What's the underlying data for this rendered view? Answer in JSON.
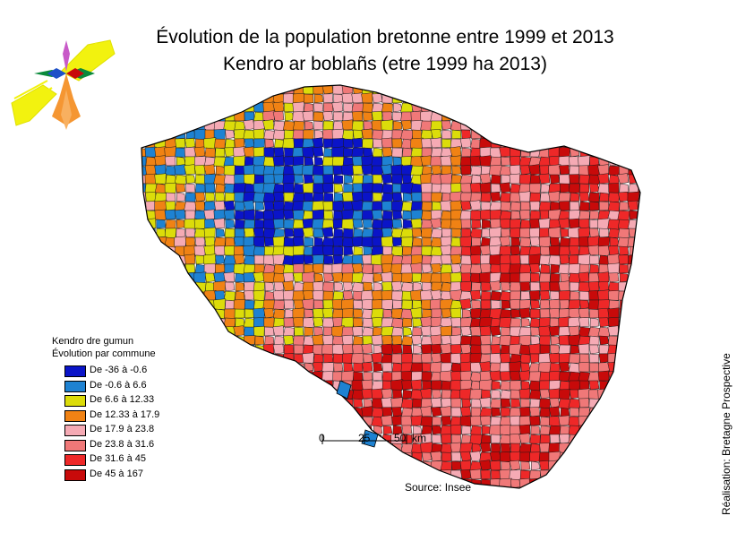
{
  "title_fr": "Évolution de la population bretonne entre 1999 et 2013",
  "title_br": "Kendro ar boblañs (etre 1999 ha 2013)",
  "legend": {
    "title_br": "Kendro dre gumun",
    "title_fr": "Évolution par commune",
    "items": [
      {
        "label": "De -36 à -0.6",
        "color": "#0a14c8"
      },
      {
        "label": "De -0.6 à 6.6",
        "color": "#1e82d2"
      },
      {
        "label": "De 6.6 à 12.33",
        "color": "#dcdc0a"
      },
      {
        "label": "De 12.33 à 17.9",
        "color": "#f08214"
      },
      {
        "label": "De 17.9 à 23.8",
        "color": "#f5aab4"
      },
      {
        "label": "De 23.8 à 31.6",
        "color": "#f07878"
      },
      {
        "label": "De 31.6 à 45",
        "color": "#ee2828"
      },
      {
        "label": "De 45 à 167",
        "color": "#c80a0a"
      }
    ]
  },
  "scale": {
    "ticks": [
      "0",
      "25",
      "50"
    ],
    "unit": "km"
  },
  "source": "Source: Insee",
  "credit": "Réalisation: Bretagne Prospective",
  "logo": {
    "icon": "breton-flag-flower-logo"
  }
}
